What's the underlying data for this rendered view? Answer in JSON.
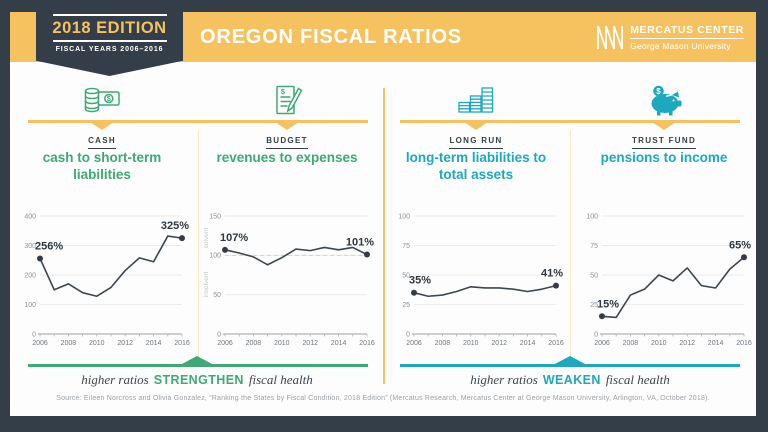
{
  "colors": {
    "navy": "#333E48",
    "gold": "#F6C25F",
    "gold_pale": "#F8E7C2",
    "green": "#3FA877",
    "teal": "#1CA9BE",
    "card_bg": "#FDFDFD",
    "chart_line": "#3D474F",
    "grid": "#ECECEC",
    "axis": "#9AA1A7",
    "data_label": "#2E3840",
    "source_text": "#9BA1A6"
  },
  "header": {
    "badge_title": "2018 EDITION",
    "badge_subtitle": "FISCAL YEARS 2006–2016",
    "title": "OREGON FISCAL RATIOS",
    "logo_name": "MERCATUS CENTER",
    "logo_sub": "George Mason University"
  },
  "columns": [
    {
      "label": "CASH",
      "subtitle": "cash to short-term liabilities",
      "color": "#3FA877"
    },
    {
      "label": "BUDGET",
      "subtitle": "revenues to expenses",
      "color": "#3FA877"
    },
    {
      "label": "LONG RUN",
      "subtitle": "long-term liabilities to total assets",
      "color": "#1CA9BE"
    },
    {
      "label": "TRUST FUND",
      "subtitle": "pensions to income",
      "color": "#1CA9BE"
    }
  ],
  "footers": [
    {
      "pre": "higher ratios",
      "word": "STRENGTHEN",
      "post": "fiscal health",
      "color": "#3FA877"
    },
    {
      "pre": "higher ratios",
      "word": "WEAKEN",
      "post": "fiscal health",
      "color": "#1CA9BE"
    }
  ],
  "source": "Source: Eileen Norcross and Olivia Gonzalez, “Ranking the States by Fiscal Condition, 2018 Edition” (Mercatus Research, Mercatus Center at George Mason University, Arlington, VA, October 2018).",
  "chart_data": [
    {
      "type": "line",
      "category": "CASH",
      "title": "cash to short-term liabilities",
      "x": [
        2006,
        2007,
        2008,
        2009,
        2010,
        2011,
        2012,
        2013,
        2014,
        2015,
        2016
      ],
      "values": [
        256,
        150,
        170,
        140,
        128,
        158,
        215,
        258,
        245,
        332,
        325
      ],
      "ylim": [
        0,
        400
      ],
      "yticks": [
        0,
        100,
        200,
        300,
        400
      ],
      "xticks": [
        2006,
        2008,
        2010,
        2012,
        2014,
        2016
      ],
      "first_label": "256%",
      "last_label": "325%",
      "grid": true,
      "legend": "none"
    },
    {
      "type": "line",
      "category": "BUDGET",
      "title": "revenues to expenses",
      "x": [
        2006,
        2007,
        2008,
        2009,
        2010,
        2011,
        2012,
        2013,
        2014,
        2015,
        2016
      ],
      "values": [
        107,
        103,
        98,
        88,
        97,
        108,
        106,
        110,
        107,
        110,
        101
      ],
      "ylim": [
        0,
        150
      ],
      "yticks": [
        0,
        50,
        100,
        150
      ],
      "xticks": [
        2006,
        2008,
        2010,
        2012,
        2014,
        2016
      ],
      "first_label": "107%",
      "last_label": "101%",
      "ref_line": {
        "value": 100,
        "above_label": "solvent",
        "below_label": "insolvent"
      },
      "grid": true,
      "legend": "none"
    },
    {
      "type": "line",
      "category": "LONG RUN",
      "title": "long-term liabilities to total assets",
      "x": [
        2006,
        2007,
        2008,
        2009,
        2010,
        2011,
        2012,
        2013,
        2014,
        2015,
        2016
      ],
      "values": [
        35,
        32,
        33,
        36,
        40,
        39,
        39,
        38,
        36,
        38,
        41
      ],
      "ylim": [
        0,
        100
      ],
      "yticks": [
        0,
        25,
        50,
        75,
        100
      ],
      "xticks": [
        2006,
        2008,
        2010,
        2012,
        2014,
        2016
      ],
      "first_label": "35%",
      "last_label": "41%",
      "grid": true,
      "legend": "none"
    },
    {
      "type": "line",
      "category": "TRUST FUND",
      "title": "pensions to income",
      "x": [
        2006,
        2007,
        2008,
        2009,
        2010,
        2011,
        2012,
        2013,
        2014,
        2015,
        2016
      ],
      "values": [
        15,
        14,
        33,
        38,
        50,
        45,
        56,
        41,
        39,
        55,
        65
      ],
      "ylim": [
        0,
        100
      ],
      "yticks": [
        0,
        25,
        50,
        75,
        100
      ],
      "xticks": [
        2006,
        2008,
        2010,
        2012,
        2014,
        2016
      ],
      "first_label": "15%",
      "last_label": "65%",
      "grid": true,
      "legend": "none"
    }
  ]
}
